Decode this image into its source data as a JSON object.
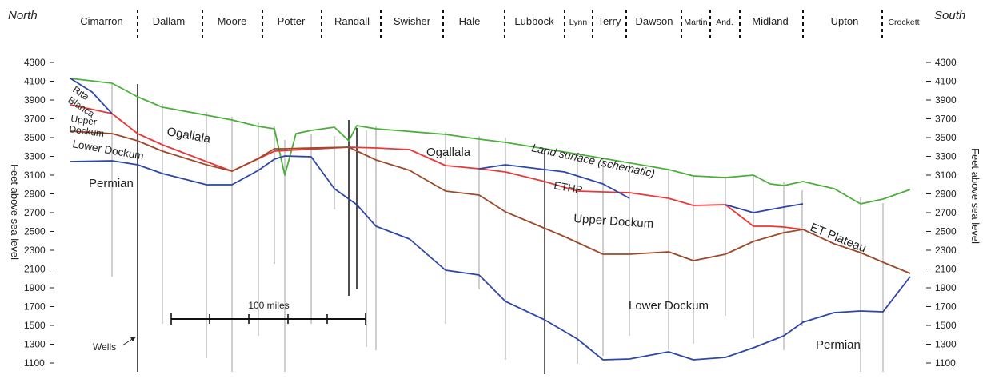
{
  "direction": {
    "left": "North",
    "right": "South"
  },
  "counties": [
    "Cimarron",
    "Dallam",
    "Moore",
    "Potter",
    "Randall",
    "Swisher",
    "Hale",
    "Lubbock",
    "Lynn",
    "Terry",
    "Dawson",
    "Martin",
    "And.",
    "Midland",
    "Upton",
    "Crockett"
  ],
  "axis": {
    "label": "Feet above sea level",
    "ticks": [
      "4300",
      "4100",
      "3900",
      "3700",
      "3500",
      "3300",
      "3100",
      "2900",
      "2700",
      "2500",
      "2300",
      "2100",
      "1900",
      "1700",
      "1500",
      "1300",
      "1100"
    ]
  },
  "colors": {
    "land_surface": "#4caf3c",
    "ogallala_base": "#e8383a",
    "upper_dockum_base": "#9c4a2a",
    "lower_dockum_base": "#2d47a8",
    "wells": "#888888",
    "text": "#222222"
  },
  "labels": {
    "land_surface": "Land surface (schematic)",
    "ogallala_north": "Ogallala",
    "ogallala_central": "Ogallala",
    "rita_blanca_1": "Rita",
    "rita_blanca_2": "Blanca",
    "upper_dockum_north_1": "Upper",
    "upper_dockum_north_2": "Dockum",
    "lower_dockum_north": "Lower Dockum",
    "permian_north": "Permian",
    "ethp": "ETHP",
    "upper_dockum_south": "Upper Dockum",
    "et_plateau": "ET Plateau",
    "lower_dockum_south": "Lower Dockum",
    "permian_south": "Permian",
    "wells": "Wells",
    "scale": "100 miles"
  }
}
